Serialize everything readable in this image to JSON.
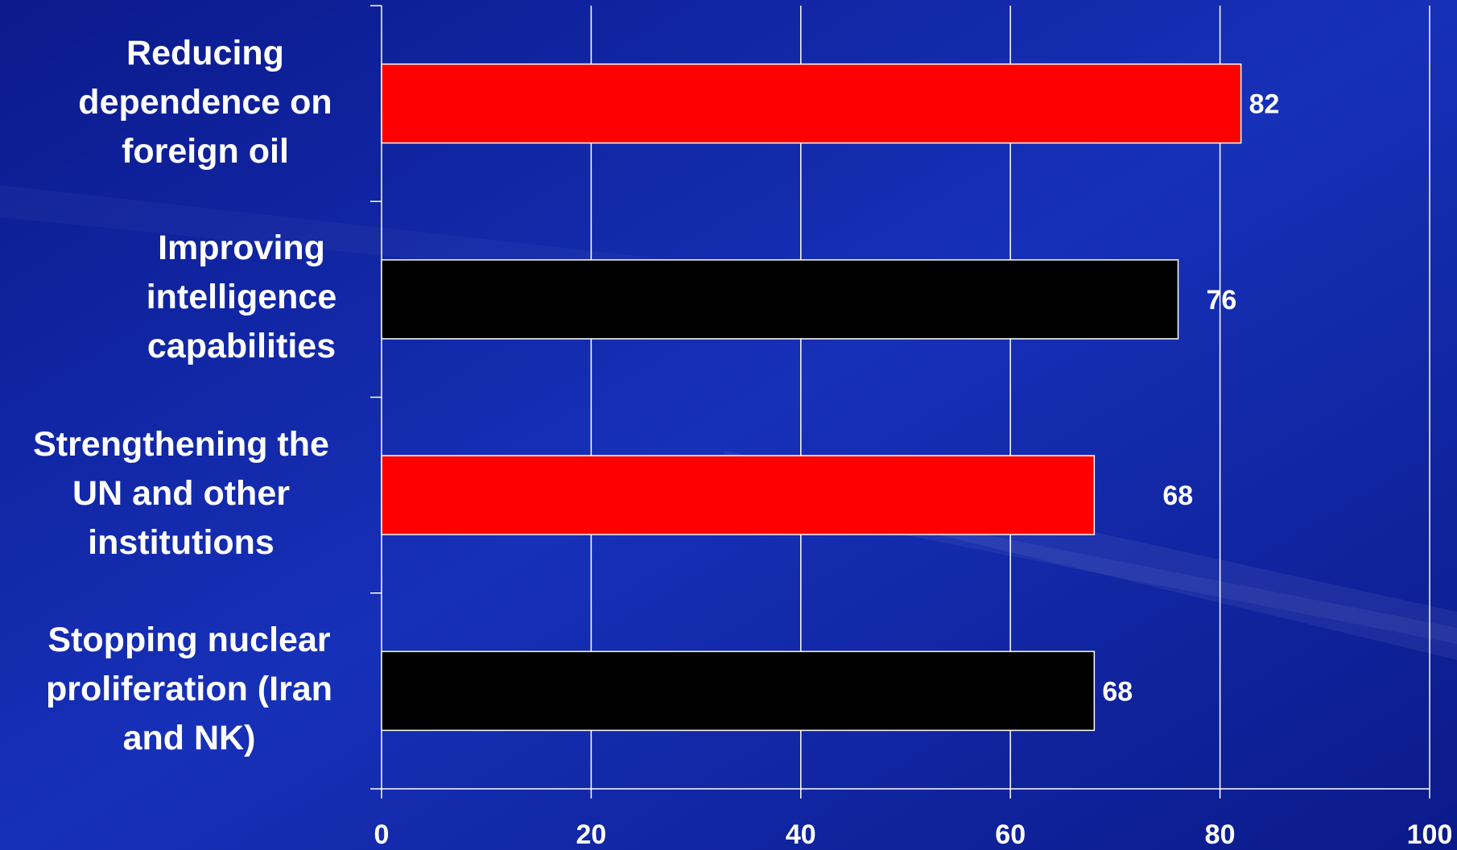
{
  "chart_data": {
    "type": "bar",
    "orientation": "horizontal",
    "categories": [
      "Reducing dependence on foreign oil",
      "Improving intelligence capabilities",
      "Strengthening the UN and other institutions",
      "Stopping nuclear proliferation (Iran and NK)"
    ],
    "values": [
      82,
      76,
      68,
      68
    ],
    "bar_colors": [
      "#ff0000",
      "#000000",
      "#ff0000",
      "#000000"
    ],
    "xlim": [
      0,
      100
    ],
    "xticks": [
      0,
      20,
      40,
      60,
      80,
      100
    ],
    "xtick_labels": [
      "0",
      "20",
      "40",
      "60",
      "80",
      "100"
    ],
    "data_labels": [
      "82",
      "76",
      "68",
      "68"
    ],
    "title": "",
    "xlabel": "",
    "ylabel": "",
    "grid": "vertical"
  },
  "labels": {
    "cat0": [
      "Reducing",
      "dependence on",
      "foreign oil"
    ],
    "cat1": [
      "Improving",
      "intelligence",
      "capabilities"
    ],
    "cat2": [
      "Strengthening the",
      "UN and other",
      "institutions"
    ],
    "cat3": [
      "Stopping nuclear",
      "proliferation (Iran",
      "and NK)"
    ]
  },
  "colors": {
    "background": "#0c1b8f",
    "grid": "#ffffff",
    "text": "#ffffff"
  }
}
